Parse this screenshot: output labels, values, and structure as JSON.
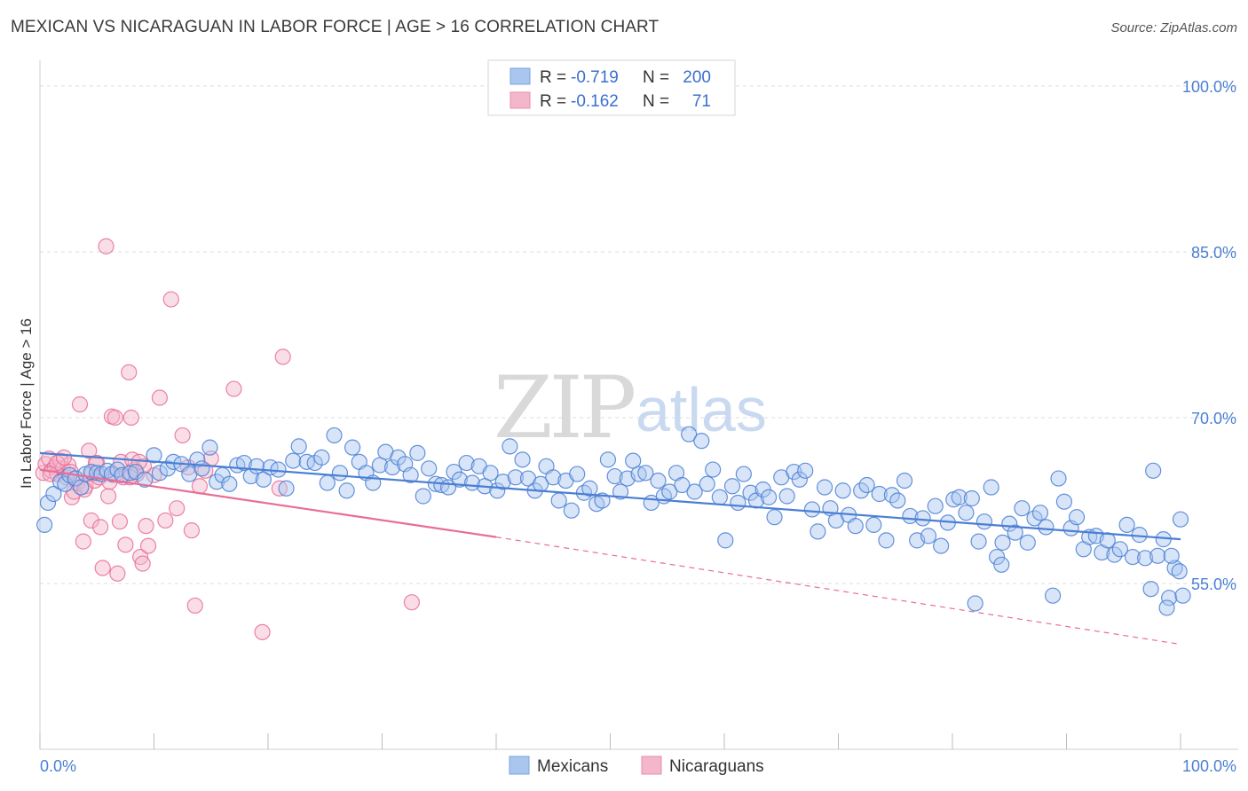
{
  "title": "MEXICAN VS NICARAGUAN IN LABOR FORCE | AGE > 16 CORRELATION CHART",
  "source": "Source: ZipAtlas.com",
  "watermark": {
    "zip": "ZIP",
    "atlas": "atlas"
  },
  "legend": {
    "r_label": "R =",
    "n_label": "N =",
    "rows": [
      {
        "r": "-0.719",
        "n": "200"
      },
      {
        "r": "-0.162",
        "n": "71"
      }
    ]
  },
  "colors": {
    "blue": "#4a7fd4",
    "blue_fill": "#a9c6ef",
    "pink": "#e86d97",
    "pink_fill": "#f4b6ca",
    "grid": "#dcdcdc"
  },
  "chart_data": {
    "type": "scatter",
    "xlabel": "",
    "ylabel": "In Labor Force | Age > 16",
    "xlim": [
      0,
      100
    ],
    "ylim": [
      40,
      102
    ],
    "y_ticks": [
      {
        "value": 100,
        "label": "100.0%"
      },
      {
        "value": 85,
        "label": "85.0%"
      },
      {
        "value": 70,
        "label": "70.0%"
      },
      {
        "value": 55,
        "label": "55.0%"
      }
    ],
    "x_tick_labels": [
      {
        "value": 0,
        "label": "0.0%"
      },
      {
        "value": 100,
        "label": "100.0%"
      }
    ],
    "x_minor_ticks": [
      0,
      10,
      20,
      30,
      40,
      50,
      60,
      70,
      80,
      90,
      100
    ],
    "series": [
      {
        "name": "Mexicans",
        "color": "#4a7fd4",
        "trend": {
          "x0": 0,
          "y0": 66.8,
          "x1": 100,
          "y1": 59.0,
          "dashed_from": 100
        },
        "points": [
          [
            0.4,
            60.3
          ],
          [
            0.7,
            62.3
          ],
          [
            1.2,
            63.1
          ],
          [
            1.8,
            64.2
          ],
          [
            2.2,
            64.0
          ],
          [
            2.6,
            64.8
          ],
          [
            3.1,
            64.5
          ],
          [
            3.6,
            63.7
          ],
          [
            4.0,
            64.9
          ],
          [
            4.5,
            65.1
          ],
          [
            5.0,
            65.0
          ],
          [
            5.4,
            64.9
          ],
          [
            5.9,
            65.2
          ],
          [
            6.3,
            64.9
          ],
          [
            6.8,
            65.3
          ],
          [
            7.2,
            64.8
          ],
          [
            7.9,
            65.0
          ],
          [
            8.4,
            65.1
          ],
          [
            9.2,
            64.4
          ],
          [
            10.0,
            66.6
          ],
          [
            10.5,
            65.0
          ],
          [
            11.2,
            65.4
          ],
          [
            11.7,
            66.0
          ],
          [
            12.4,
            65.8
          ],
          [
            13.1,
            64.9
          ],
          [
            13.8,
            66.2
          ],
          [
            14.2,
            65.4
          ],
          [
            14.9,
            67.3
          ],
          [
            15.5,
            64.2
          ],
          [
            16.0,
            64.8
          ],
          [
            16.6,
            64.0
          ],
          [
            17.3,
            65.7
          ],
          [
            17.9,
            65.9
          ],
          [
            18.5,
            64.7
          ],
          [
            19.0,
            65.6
          ],
          [
            19.6,
            64.4
          ],
          [
            20.2,
            65.5
          ],
          [
            20.9,
            65.3
          ],
          [
            21.6,
            63.6
          ],
          [
            22.2,
            66.1
          ],
          [
            22.7,
            67.4
          ],
          [
            23.4,
            66.0
          ],
          [
            24.1,
            65.9
          ],
          [
            24.7,
            66.4
          ],
          [
            25.2,
            64.1
          ],
          [
            25.8,
            68.4
          ],
          [
            26.3,
            65.0
          ],
          [
            26.9,
            63.4
          ],
          [
            27.4,
            67.3
          ],
          [
            28.0,
            66.0
          ],
          [
            28.6,
            65.0
          ],
          [
            29.2,
            64.1
          ],
          [
            29.8,
            65.7
          ],
          [
            30.3,
            66.9
          ],
          [
            30.9,
            65.5
          ],
          [
            31.4,
            66.4
          ],
          [
            32.0,
            65.8
          ],
          [
            32.5,
            64.8
          ],
          [
            33.1,
            66.8
          ],
          [
            33.6,
            62.9
          ],
          [
            34.1,
            65.4
          ],
          [
            34.7,
            64.0
          ],
          [
            35.2,
            63.9
          ],
          [
            35.8,
            63.7
          ],
          [
            36.3,
            65.1
          ],
          [
            36.8,
            64.4
          ],
          [
            37.4,
            65.9
          ],
          [
            37.9,
            64.1
          ],
          [
            38.5,
            65.6
          ],
          [
            39.0,
            63.8
          ],
          [
            39.5,
            65.0
          ],
          [
            40.1,
            63.4
          ],
          [
            40.6,
            64.2
          ],
          [
            41.2,
            67.4
          ],
          [
            41.7,
            64.6
          ],
          [
            42.3,
            66.2
          ],
          [
            42.8,
            64.5
          ],
          [
            43.4,
            63.4
          ],
          [
            43.9,
            64.0
          ],
          [
            44.4,
            65.6
          ],
          [
            45.0,
            64.6
          ],
          [
            45.5,
            62.5
          ],
          [
            46.1,
            64.3
          ],
          [
            46.6,
            61.6
          ],
          [
            47.1,
            64.9
          ],
          [
            47.7,
            63.2
          ],
          [
            48.2,
            63.6
          ],
          [
            48.8,
            62.2
          ],
          [
            49.3,
            62.5
          ],
          [
            49.8,
            66.2
          ],
          [
            50.4,
            64.7
          ],
          [
            50.9,
            63.3
          ],
          [
            51.5,
            64.5
          ],
          [
            52.0,
            66.1
          ],
          [
            52.5,
            64.9
          ],
          [
            53.1,
            65.0
          ],
          [
            53.6,
            62.3
          ],
          [
            54.2,
            64.3
          ],
          [
            54.7,
            62.9
          ],
          [
            55.2,
            63.3
          ],
          [
            55.8,
            65.0
          ],
          [
            56.3,
            63.9
          ],
          [
            56.9,
            68.5
          ],
          [
            57.4,
            63.3
          ],
          [
            58.0,
            67.9
          ],
          [
            58.5,
            64.0
          ],
          [
            59.0,
            65.3
          ],
          [
            59.6,
            62.8
          ],
          [
            60.1,
            58.9
          ],
          [
            60.7,
            63.8
          ],
          [
            61.2,
            62.3
          ],
          [
            61.7,
            64.9
          ],
          [
            62.3,
            63.2
          ],
          [
            62.8,
            62.5
          ],
          [
            63.4,
            63.5
          ],
          [
            63.9,
            62.8
          ],
          [
            64.4,
            61.0
          ],
          [
            65.0,
            64.6
          ],
          [
            65.5,
            62.9
          ],
          [
            66.1,
            65.1
          ],
          [
            66.6,
            64.4
          ],
          [
            67.1,
            65.2
          ],
          [
            67.7,
            61.7
          ],
          [
            68.2,
            59.7
          ],
          [
            68.8,
            63.7
          ],
          [
            69.3,
            61.8
          ],
          [
            69.8,
            60.7
          ],
          [
            70.4,
            63.4
          ],
          [
            70.9,
            61.2
          ],
          [
            71.5,
            60.2
          ],
          [
            72.0,
            63.4
          ],
          [
            72.5,
            63.9
          ],
          [
            73.1,
            60.3
          ],
          [
            73.6,
            63.1
          ],
          [
            74.2,
            58.9
          ],
          [
            74.7,
            63.0
          ],
          [
            75.2,
            62.5
          ],
          [
            75.8,
            64.3
          ],
          [
            76.3,
            61.1
          ],
          [
            76.9,
            58.9
          ],
          [
            77.4,
            60.9
          ],
          [
            77.9,
            59.3
          ],
          [
            78.5,
            62.0
          ],
          [
            79.0,
            58.4
          ],
          [
            79.6,
            60.5
          ],
          [
            80.1,
            62.6
          ],
          [
            80.6,
            62.8
          ],
          [
            81.2,
            61.4
          ],
          [
            81.7,
            62.7
          ],
          [
            82.3,
            58.8
          ],
          [
            82.8,
            60.6
          ],
          [
            83.4,
            63.7
          ],
          [
            83.9,
            57.4
          ],
          [
            84.4,
            58.7
          ],
          [
            85.0,
            60.4
          ],
          [
            85.5,
            59.6
          ],
          [
            86.1,
            61.8
          ],
          [
            86.6,
            58.7
          ],
          [
            87.2,
            60.9
          ],
          [
            87.7,
            61.4
          ],
          [
            88.2,
            60.1
          ],
          [
            88.8,
            53.9
          ],
          [
            89.3,
            64.5
          ],
          [
            89.8,
            62.4
          ],
          [
            90.4,
            60.0
          ],
          [
            90.9,
            61.0
          ],
          [
            91.5,
            58.1
          ],
          [
            92.0,
            59.2
          ],
          [
            92.6,
            59.3
          ],
          [
            93.1,
            57.8
          ],
          [
            93.6,
            58.9
          ],
          [
            94.2,
            57.6
          ],
          [
            94.7,
            58.1
          ],
          [
            95.3,
            60.3
          ],
          [
            95.8,
            57.4
          ],
          [
            96.4,
            59.4
          ],
          [
            96.9,
            57.3
          ],
          [
            97.4,
            54.5
          ],
          [
            98.0,
            57.5
          ],
          [
            98.5,
            59.0
          ],
          [
            99.0,
            53.7
          ],
          [
            99.5,
            56.4
          ],
          [
            99.9,
            56.1
          ],
          [
            98.8,
            52.8
          ],
          [
            97.6,
            65.2
          ],
          [
            100.0,
            60.8
          ],
          [
            99.2,
            57.5
          ],
          [
            100.2,
            53.9
          ],
          [
            82.0,
            53.2
          ],
          [
            84.3,
            56.7
          ]
        ]
      },
      {
        "name": "Nicaraguans",
        "color": "#e86d97",
        "trend": {
          "x0": 0,
          "y0": 65.3,
          "x1": 40,
          "y1": 59.2,
          "x_end_dashed": 100,
          "y_end_dashed": 49.5
        },
        "points": [
          [
            0.3,
            65.0
          ],
          [
            0.5,
            65.8
          ],
          [
            0.8,
            66.3
          ],
          [
            1.0,
            65.2
          ],
          [
            1.3,
            65.5
          ],
          [
            1.5,
            64.9
          ],
          [
            1.8,
            66.1
          ],
          [
            2.0,
            65.4
          ],
          [
            2.3,
            64.6
          ],
          [
            2.5,
            65.7
          ],
          [
            2.8,
            62.8
          ],
          [
            3.0,
            63.3
          ],
          [
            3.3,
            64.1
          ],
          [
            3.5,
            71.2
          ],
          [
            3.8,
            58.8
          ],
          [
            4.0,
            63.8
          ],
          [
            4.3,
            67.0
          ],
          [
            4.5,
            60.7
          ],
          [
            4.8,
            64.3
          ],
          [
            5.0,
            65.9
          ],
          [
            5.3,
            60.1
          ],
          [
            5.5,
            56.4
          ],
          [
            5.8,
            85.5
          ],
          [
            6.0,
            62.9
          ],
          [
            6.3,
            70.1
          ],
          [
            6.5,
            64.8
          ],
          [
            6.8,
            55.9
          ],
          [
            7.0,
            60.6
          ],
          [
            7.3,
            64.6
          ],
          [
            7.5,
            58.5
          ],
          [
            7.8,
            74.1
          ],
          [
            8.0,
            70.0
          ],
          [
            8.3,
            65.3
          ],
          [
            8.5,
            64.9
          ],
          [
            8.8,
            57.4
          ],
          [
            9.0,
            56.8
          ],
          [
            9.3,
            60.2
          ],
          [
            9.5,
            58.4
          ],
          [
            10.0,
            64.8
          ],
          [
            10.5,
            71.8
          ],
          [
            11.0,
            60.7
          ],
          [
            11.5,
            80.7
          ],
          [
            12.0,
            61.8
          ],
          [
            12.5,
            68.4
          ],
          [
            13.0,
            65.5
          ],
          [
            13.3,
            59.8
          ],
          [
            13.6,
            53.0
          ],
          [
            14.0,
            63.8
          ],
          [
            14.5,
            65.2
          ],
          [
            15.0,
            66.3
          ],
          [
            17.0,
            72.6
          ],
          [
            19.5,
            50.6
          ],
          [
            21.0,
            63.6
          ],
          [
            21.3,
            75.5
          ],
          [
            32.6,
            53.3
          ],
          [
            1.5,
            65.9
          ],
          [
            2.1,
            66.4
          ],
          [
            0.9,
            64.9
          ],
          [
            2.7,
            65.1
          ],
          [
            3.9,
            63.5
          ],
          [
            4.6,
            65.0
          ],
          [
            5.2,
            64.6
          ],
          [
            6.1,
            64.2
          ],
          [
            7.1,
            66.0
          ],
          [
            8.1,
            66.2
          ],
          [
            9.1,
            65.6
          ],
          [
            6.6,
            70.0
          ],
          [
            3.2,
            64.5
          ],
          [
            4.9,
            65.9
          ],
          [
            7.9,
            64.6
          ],
          [
            8.7,
            66.0
          ]
        ]
      }
    ]
  }
}
